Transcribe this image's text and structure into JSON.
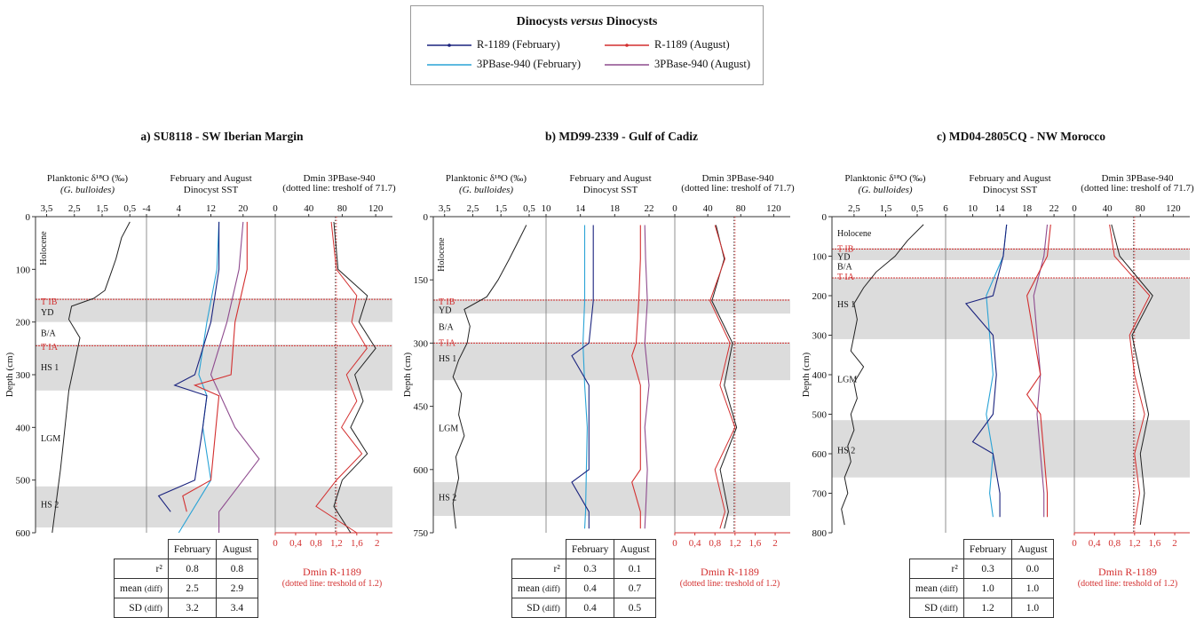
{
  "legend": {
    "title_pre": "Dinocysts ",
    "title_italic": "versus",
    "title_post": " Dinocysts",
    "items": [
      {
        "label": "R-1189 (February)",
        "color": "#1a237e"
      },
      {
        "label": "R-1189 (August)",
        "color": "#d32f2f"
      },
      {
        "label": "3PBase-940 (February)",
        "color": "#29a3d6"
      },
      {
        "label": "3PBase-940 (August)",
        "color": "#8e4b8e"
      }
    ]
  },
  "headers": {
    "d18o_line1": "Planktonic δ¹⁸O (‰)",
    "d18o_line2": "(G. bulloides)",
    "sst_line1": "February and August",
    "sst_line2": "Dinocyst SST",
    "dmin_line1": "Dmin 3PBase-940",
    "dmin_line2": "(dotted line: tresholf of 71.7)",
    "depth_axis": "Depth (cm)",
    "dmin_r_line1": "Dmin R-1189",
    "dmin_r_line2": "(dotted line: treshold of 1.2)"
  },
  "table_labels": {
    "col_feb": "February",
    "col_aug": "August",
    "row_r2": "r²",
    "row_mean": "mean",
    "row_sd": "SD",
    "diff": "(diff)"
  },
  "chart_data": [
    {
      "type": "line",
      "title": "a) SU8118 - SW Iberian Margin",
      "depth_ticks": [
        "0",
        "100",
        "200",
        "300",
        "400",
        "500",
        "600"
      ],
      "depth_range": [
        0,
        600
      ],
      "d18o_ticks": [
        "3,5",
        "2,5",
        "1,5",
        "0,5"
      ],
      "d18o_range": [
        3.9,
        -0.1
      ],
      "sst_ticks": [
        "-4",
        "4",
        "12",
        "20"
      ],
      "sst_range": [
        -4,
        28
      ],
      "dmin3p_ticks": [
        "0",
        "40",
        "80",
        "120"
      ],
      "dmin3p_range": [
        0,
        140
      ],
      "dminr_ticks": [
        "0",
        "0,4",
        "0,8",
        "1,2",
        "1,6",
        "2"
      ],
      "dminr_range": [
        0,
        2.3
      ],
      "zones": [
        {
          "label": "Holocene",
          "depth": 60,
          "rotate": true,
          "color": "#111"
        },
        {
          "label": "T IB",
          "depth": 160,
          "color": "#d32f2f"
        },
        {
          "label": "YD",
          "depth": 180,
          "color": "#111"
        },
        {
          "label": "B/A",
          "depth": 220,
          "color": "#111"
        },
        {
          "label": "T IA",
          "depth": 246,
          "color": "#d32f2f"
        },
        {
          "label": "HS 1",
          "depth": 285,
          "color": "#111"
        },
        {
          "label": "LGM",
          "depth": 420,
          "color": "#111"
        },
        {
          "label": "HS 2",
          "depth": 545,
          "color": "#111"
        }
      ],
      "shaded": [
        [
          155,
          200
        ],
        [
          243,
          330
        ],
        [
          512,
          590
        ]
      ],
      "red_lines": [
        157,
        245
      ],
      "d18o": {
        "depth": [
          10,
          40,
          80,
          110,
          140,
          155,
          170,
          195,
          230,
          280,
          330,
          380,
          430,
          480,
          520,
          560,
          600
        ],
        "value": [
          0.5,
          0.8,
          1.0,
          1.2,
          1.4,
          1.8,
          2.6,
          2.7,
          2.3,
          2.5,
          2.7,
          2.8,
          2.9,
          3.0,
          3.1,
          3.2,
          3.3
        ]
      },
      "sst_feb_r": {
        "depth": [
          10,
          100,
          200,
          300,
          320,
          340,
          400,
          500,
          530,
          560
        ],
        "value": [
          14,
          14,
          12,
          8,
          3,
          11,
          10,
          8,
          -1,
          2
        ]
      },
      "sst_feb_3p": {
        "depth": [
          10,
          100,
          200,
          300,
          340,
          400,
          500,
          600
        ],
        "value": [
          14,
          13.5,
          11,
          9,
          11,
          10,
          12,
          4
        ]
      },
      "sst_aug_r": {
        "depth": [
          10,
          100,
          200,
          300,
          320,
          340,
          500,
          530,
          560
        ],
        "value": [
          21,
          21,
          18,
          17,
          8,
          14,
          12,
          5,
          6
        ]
      },
      "sst_aug_3p": {
        "depth": [
          10,
          100,
          200,
          300,
          400,
          460,
          560,
          600
        ],
        "value": [
          20,
          19,
          16,
          12,
          18,
          24,
          14,
          14
        ]
      },
      "dmin_3p": {
        "depth": [
          10,
          100,
          150,
          200,
          250,
          300,
          350,
          400,
          450,
          500,
          550,
          600
        ],
        "value": [
          70,
          75,
          110,
          100,
          120,
          95,
          105,
          90,
          110,
          80,
          70,
          90
        ]
      },
      "dmin_r": {
        "depth": [
          10,
          100,
          150,
          200,
          250,
          300,
          350,
          400,
          450,
          500,
          550,
          600
        ],
        "value": [
          1.1,
          1.2,
          1.6,
          1.5,
          1.8,
          1.4,
          1.6,
          1.3,
          1.7,
          1.2,
          0.8,
          1.6
        ]
      },
      "stats": {
        "r2": [
          "0.8",
          "0.8"
        ],
        "mean": [
          "2.5",
          "2.9"
        ],
        "sd": [
          "3.2",
          "3.4"
        ]
      }
    },
    {
      "type": "line",
      "title": "b) MD99-2339 - Gulf of Cadiz",
      "depth_ticks": [
        "0",
        "150",
        "300",
        "450",
        "600",
        "750"
      ],
      "depth_range": [
        0,
        750
      ],
      "d18o_ticks": [
        "3,5",
        "2,5",
        "1,5",
        "0,5"
      ],
      "d18o_range": [
        3.9,
        -0.1
      ],
      "sst_ticks": [
        "10",
        "14",
        "18",
        "22"
      ],
      "sst_range": [
        10,
        25
      ],
      "dmin3p_ticks": [
        "0",
        "40",
        "80",
        "120"
      ],
      "dmin3p_range": [
        0,
        140
      ],
      "dminr_ticks": [
        "0",
        "0,4",
        "0,8",
        "1,2",
        "1,6",
        "2"
      ],
      "dminr_range": [
        0,
        2.3
      ],
      "zones": [
        {
          "label": "Holocene",
          "depth": 90,
          "rotate": true,
          "color": "#111"
        },
        {
          "label": "T IB",
          "depth": 200,
          "color": "#d32f2f"
        },
        {
          "label": "YD",
          "depth": 220,
          "color": "#111"
        },
        {
          "label": "B/A",
          "depth": 260,
          "color": "#111"
        },
        {
          "label": "T IA",
          "depth": 298,
          "color": "#d32f2f"
        },
        {
          "label": "HS 1",
          "depth": 335,
          "color": "#111"
        },
        {
          "label": "LGM",
          "depth": 500,
          "color": "#111"
        },
        {
          "label": "HS 2",
          "depth": 665,
          "color": "#111"
        }
      ],
      "shaded": [
        [
          196,
          230
        ],
        [
          298,
          388
        ],
        [
          630,
          710
        ]
      ],
      "red_lines": [
        198,
        300
      ],
      "d18o": {
        "depth": [
          20,
          60,
          100,
          150,
          190,
          220,
          260,
          300,
          340,
          380,
          420,
          470,
          520,
          570,
          620,
          680,
          740
        ],
        "value": [
          0.6,
          0.9,
          1.2,
          1.6,
          2.0,
          2.8,
          2.6,
          2.7,
          3.0,
          3.2,
          2.9,
          3.0,
          2.8,
          3.1,
          3.0,
          3.2,
          3.1
        ]
      },
      "sst_feb_r": {
        "depth": [
          20,
          100,
          200,
          300,
          330,
          400,
          500,
          600,
          630,
          700,
          740
        ],
        "value": [
          15.5,
          15.5,
          15.5,
          15,
          13,
          15,
          15,
          15,
          13,
          15,
          15
        ]
      },
      "sst_feb_3p": {
        "depth": [
          20,
          100,
          200,
          300,
          400,
          500,
          600,
          700,
          740
        ],
        "value": [
          14.5,
          14.5,
          14.5,
          14.3,
          14.5,
          14.8,
          14.7,
          14.6,
          14.5
        ]
      },
      "sst_aug_r": {
        "depth": [
          20,
          100,
          200,
          300,
          330,
          400,
          500,
          600,
          630,
          700,
          740
        ],
        "value": [
          21,
          21,
          20.8,
          20.5,
          20,
          21,
          21,
          21,
          20,
          21,
          21
        ]
      },
      "sst_aug_3p": {
        "depth": [
          20,
          100,
          200,
          300,
          400,
          500,
          600,
          700,
          740
        ],
        "value": [
          21.5,
          21.6,
          21.8,
          21.5,
          22,
          21.5,
          21.8,
          21.6,
          21.5
        ]
      },
      "dmin_3p": {
        "depth": [
          20,
          100,
          200,
          300,
          400,
          500,
          600,
          700,
          740
        ],
        "value": [
          50,
          60,
          45,
          70,
          60,
          75,
          55,
          65,
          60
        ]
      },
      "dmin_r": {
        "depth": [
          20,
          100,
          200,
          300,
          400,
          500,
          600,
          700,
          740
        ],
        "value": [
          0.8,
          1.0,
          0.7,
          1.1,
          0.9,
          1.2,
          0.8,
          1.0,
          0.9
        ]
      },
      "stats": {
        "r2": [
          "0.3",
          "0.1"
        ],
        "mean": [
          "0.4",
          "0.7"
        ],
        "sd": [
          "0.4",
          "0.5"
        ]
      }
    },
    {
      "type": "line",
      "title": "c) MD04-2805CQ - NW Morocco",
      "depth_ticks": [
        "0",
        "100",
        "200",
        "300",
        "400",
        "500",
        "600",
        "700",
        "800"
      ],
      "depth_range": [
        0,
        800
      ],
      "d18o_ticks": [
        "2,5",
        "1,5",
        "0,5"
      ],
      "d18o_range": [
        3.2,
        -0.4
      ],
      "sst_ticks": [
        "6",
        "10",
        "14",
        "18",
        "22"
      ],
      "sst_range": [
        6,
        25
      ],
      "dmin3p_ticks": [
        "0",
        "40",
        "80",
        "120"
      ],
      "dmin3p_range": [
        0,
        140
      ],
      "dminr_ticks": [
        "0",
        "0,4",
        "0,8",
        "1,2",
        "1,6",
        "2"
      ],
      "dminr_range": [
        0,
        2.3
      ],
      "zones": [
        {
          "label": "Holocene",
          "depth": 40,
          "color": "#111"
        },
        {
          "label": "T IB",
          "depth": 80,
          "color": "#d32f2f"
        },
        {
          "label": "YD",
          "depth": 100,
          "color": "#111"
        },
        {
          "label": "B/A",
          "depth": 125,
          "color": "#111"
        },
        {
          "label": "T IA",
          "depth": 150,
          "color": "#d32f2f"
        },
        {
          "label": "HS 1",
          "depth": 220,
          "color": "#111"
        },
        {
          "label": "LGM",
          "depth": 410,
          "color": "#111"
        },
        {
          "label": "HS 2",
          "depth": 590,
          "color": "#111"
        }
      ],
      "shaded": [
        [
          80,
          110
        ],
        [
          155,
          310
        ],
        [
          515,
          660
        ]
      ],
      "red_lines": [
        82,
        155
      ],
      "d18o": {
        "depth": [
          20,
          60,
          100,
          140,
          180,
          220,
          260,
          300,
          340,
          380,
          420,
          460,
          500,
          540,
          580,
          620,
          660,
          700,
          740,
          780
        ],
        "value": [
          0.3,
          0.8,
          1.2,
          1.8,
          2.2,
          2.5,
          2.4,
          2.5,
          2.6,
          2.2,
          2.5,
          2.4,
          2.6,
          2.5,
          2.7,
          2.6,
          2.8,
          2.7,
          2.9,
          2.8
        ]
      },
      "sst_feb_r": {
        "depth": [
          20,
          100,
          200,
          220,
          300,
          400,
          500,
          570,
          600,
          700,
          760
        ],
        "value": [
          15,
          14.5,
          13,
          9,
          13,
          13.5,
          13,
          10,
          13,
          14,
          14
        ]
      },
      "sst_feb_3p": {
        "depth": [
          20,
          100,
          200,
          300,
          400,
          500,
          600,
          700,
          760
        ],
        "value": [
          15,
          14.5,
          12,
          12.5,
          13,
          12,
          13,
          12.5,
          13
        ]
      },
      "sst_aug_r": {
        "depth": [
          20,
          100,
          200,
          300,
          400,
          450,
          500,
          600,
          700,
          760
        ],
        "value": [
          21.5,
          21,
          18,
          19,
          20,
          18,
          20,
          20.5,
          21,
          21
        ]
      },
      "sst_aug_3p": {
        "depth": [
          20,
          100,
          200,
          300,
          400,
          500,
          600,
          700,
          760
        ],
        "value": [
          21,
          20.5,
          19,
          19.5,
          20,
          19.5,
          20,
          20.5,
          20.5
        ]
      },
      "dmin_3p": {
        "depth": [
          20,
          100,
          200,
          300,
          400,
          500,
          600,
          700,
          780
        ],
        "value": [
          45,
          55,
          95,
          70,
          80,
          90,
          80,
          85,
          80
        ]
      },
      "dmin_r": {
        "depth": [
          20,
          100,
          200,
          300,
          400,
          500,
          600,
          700,
          780
        ],
        "value": [
          0.7,
          0.8,
          1.5,
          1.1,
          1.2,
          1.4,
          1.2,
          1.3,
          1.2
        ]
      },
      "stats": {
        "r2": [
          "0.3",
          "0.0"
        ],
        "mean": [
          "1.0",
          "1.0"
        ],
        "sd": [
          "1.2",
          "1.0"
        ]
      }
    }
  ]
}
